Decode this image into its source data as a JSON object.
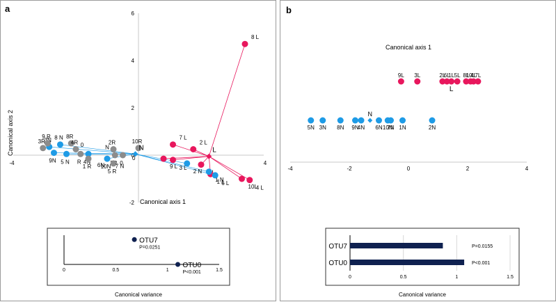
{
  "colors": {
    "soil_l": "#e8175d",
    "soil_n": "#1e9be6",
    "soil_r": "#8c8c8c",
    "otu": "#0f2150",
    "vector": "#e8175d",
    "vector_n": "#1e9be6"
  },
  "panel_a": {
    "label": "a",
    "chart_data": {
      "type": "scatter",
      "xlabel": "Canonical axis 1",
      "ylabel": "Canonical axis 2",
      "xlim": [
        -4,
        4
      ],
      "ylim": [
        -2,
        6
      ],
      "x_ticks": [
        "-4",
        "4"
      ],
      "y_ticks": [
        "6",
        "4",
        "2",
        "0",
        "-2"
      ],
      "points": [
        {
          "label": "8 L",
          "x": 3.4,
          "y": 4.7,
          "group": "L"
        },
        {
          "label": "7 L",
          "x": 1.1,
          "y": 0.45,
          "group": "L"
        },
        {
          "label": "2 L",
          "x": 1.75,
          "y": 0.25,
          "group": "L"
        },
        {
          "label": "9 L",
          "x": 0.8,
          "y": -0.15,
          "group": "L"
        },
        {
          "label": "3 L",
          "x": 1.1,
          "y": -0.2,
          "group": "L"
        },
        {
          "label": "5 L",
          "x": 2.0,
          "y": -0.4,
          "group": "L"
        },
        {
          "label": "1 L",
          "x": 2.3,
          "y": -0.8,
          "group": "L"
        },
        {
          "label": "10L",
          "x": 3.3,
          "y": -1.0,
          "group": "L"
        },
        {
          "label": "4 L",
          "x": 3.55,
          "y": -1.05,
          "group": "L"
        },
        {
          "label": "8 N",
          "x": -2.5,
          "y": 0.45,
          "group": "N"
        },
        {
          "label": "3N",
          "x": -2.85,
          "y": 0.35,
          "group": "N"
        },
        {
          "label": "5 N",
          "x": -2.3,
          "y": 0.05,
          "group": "N"
        },
        {
          "label": "10N",
          "x": -1.0,
          "y": -0.15,
          "group": "N"
        },
        {
          "label": "2 N",
          "x": 1.55,
          "y": -0.35,
          "group": "N"
        },
        {
          "label": "1 N",
          "x": 2.25,
          "y": -0.7,
          "group": "N"
        },
        {
          "label": "6 L",
          "x": 2.45,
          "y": -0.85,
          "group": "N"
        },
        {
          "label": "4N",
          "x": -1.6,
          "y": 0.05,
          "group": "N"
        },
        {
          "label": "9N",
          "x": -2.7,
          "y": 0.1,
          "group": "N"
        },
        {
          "label": "9 R",
          "x": -2.9,
          "y": 0.5,
          "group": "R"
        },
        {
          "label": "3R",
          "x": -3.05,
          "y": 0.3,
          "group": "R"
        },
        {
          "label": "8R",
          "x": -2.15,
          "y": 0.5,
          "group": "R"
        },
        {
          "label": "4R",
          "x": -2.0,
          "y": 0.25,
          "group": "R"
        },
        {
          "label": "R",
          "x": -1.85,
          "y": 0.05,
          "group": "R"
        },
        {
          "label": "2R",
          "x": -0.8,
          "y": 0.25,
          "group": "R"
        },
        {
          "label": "7R",
          "x": -0.75,
          "y": 0.0,
          "group": "R"
        },
        {
          "label": "10R",
          "x": 0.0,
          "y": 0.3,
          "group": "R"
        },
        {
          "label": "1 R",
          "x": -1.6,
          "y": -0.15,
          "group": "R"
        },
        {
          "label": "5 R",
          "x": -0.8,
          "y": -0.35,
          "group": "R"
        },
        {
          "label": "0",
          "x": -0.5,
          "y": 0.0,
          "group": "R"
        }
      ],
      "centroids": [
        {
          "label": "L",
          "x": 2.25,
          "y": -0.05,
          "color": "#e8175d"
        },
        {
          "label": "N",
          "x": -0.1,
          "y": 0.05,
          "color": "#1e9be6"
        }
      ],
      "extra_labels": [
        {
          "label": "6N",
          "x": -1.2,
          "y": -0.5
        },
        {
          "label": "7 N",
          "x": -0.6,
          "y": -0.55
        },
        {
          "label": "0",
          "x": -1.8,
          "y": 0.35
        },
        {
          "label": "0",
          "x": -0.15,
          "y": -0.2
        },
        {
          "label": "N",
          "x": -1.0,
          "y": 0.25
        }
      ],
      "vectors": [
        {
          "from": "L",
          "to": [
            3.4,
            4.7
          ]
        },
        {
          "from": "L",
          "to": [
            1.1,
            0.45
          ]
        },
        {
          "from": "L",
          "to": [
            1.75,
            0.25
          ]
        },
        {
          "from": "L",
          "to": [
            0.8,
            -0.15
          ]
        },
        {
          "from": "L",
          "to": [
            1.1,
            -0.2
          ]
        },
        {
          "from": "L",
          "to": [
            2.0,
            -0.4
          ]
        },
        {
          "from": "L",
          "to": [
            2.3,
            -0.8
          ]
        },
        {
          "from": "L",
          "to": [
            3.3,
            -1.0
          ]
        },
        {
          "from": "L",
          "to": [
            3.55,
            -1.05
          ]
        }
      ]
    },
    "inset": {
      "chart_data": {
        "type": "scatter",
        "xlabel": "Canonical variance",
        "xlim": [
          0,
          1.5
        ],
        "x_ticks": [
          "0",
          "0.5",
          "1",
          "1.5"
        ],
        "points": [
          {
            "label": "OTU7",
            "x": 0.68,
            "y": 0.85,
            "p": "P=0.0251"
          },
          {
            "label": "OTU0",
            "x": 1.1,
            "y": 0.0,
            "p": "P<0.001"
          }
        ]
      }
    }
  },
  "panel_b": {
    "label": "b",
    "chart_data": {
      "type": "scatter",
      "xlabel": "Canonical axis 1",
      "xlim": [
        -4,
        4
      ],
      "x_ticks": [
        "-4",
        "-2",
        "0",
        "2",
        "4"
      ],
      "rows": [
        {
          "group": "L",
          "y_row": "top",
          "points": [
            {
              "label": "9L",
              "x": -0.25
            },
            {
              "label": "3L",
              "x": 0.3
            },
            {
              "label": "2L",
              "x": 1.15
            },
            {
              "label": "6L",
              "x": 1.3
            },
            {
              "label": "1L",
              "x": 1.45
            },
            {
              "label": "5L",
              "x": 1.65
            },
            {
              "label": "8L",
              "x": 1.95
            },
            {
              "label": "10L",
              "x": 2.1
            },
            {
              "label": "4L",
              "x": 2.2
            },
            {
              "label": "7L",
              "x": 2.35
            }
          ]
        },
        {
          "group": "N",
          "y_row": "bottom",
          "points": [
            {
              "label": "5N",
              "x": -3.3
            },
            {
              "label": "3N",
              "x": -2.9
            },
            {
              "label": "8N",
              "x": -2.3
            },
            {
              "label": "9N",
              "x": -1.8
            },
            {
              "label": "4N",
              "x": -1.6
            },
            {
              "label": "6N",
              "x": -1.0
            },
            {
              "label": "10N",
              "x": -0.7
            },
            {
              "label": "7N",
              "x": -0.6
            },
            {
              "label": "1N",
              "x": -0.2
            },
            {
              "label": "2N",
              "x": 0.8
            }
          ]
        }
      ],
      "centroids": [
        {
          "label": "L",
          "x": 1.45,
          "row": "top"
        },
        {
          "label": "N",
          "x": -1.3,
          "row": "bottom"
        }
      ]
    },
    "inset": {
      "chart_data": {
        "type": "bar",
        "orientation": "horizontal",
        "xlabel": "Canonical variance",
        "xlim": [
          0,
          1.5
        ],
        "x_ticks": [
          "0",
          "0.5",
          "1",
          "1.5"
        ],
        "categories": [
          "OTU7",
          "OTU0"
        ],
        "values": [
          0.87,
          1.07
        ],
        "p_values": [
          "P=0.0155",
          "P<0.001"
        ]
      }
    }
  }
}
